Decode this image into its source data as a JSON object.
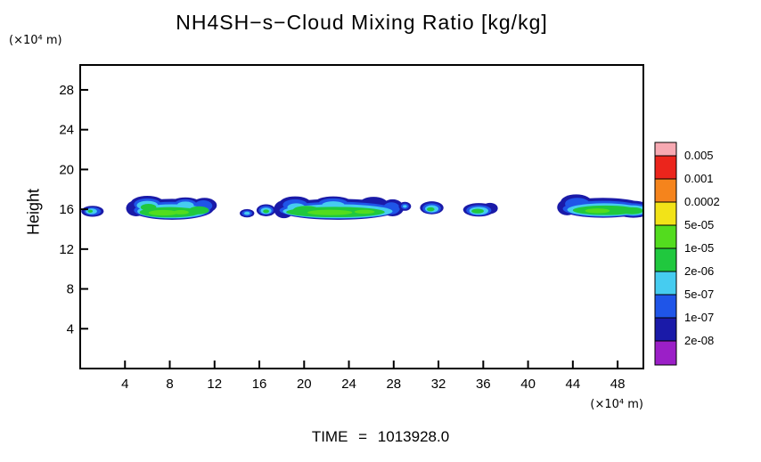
{
  "chart": {
    "title": "NH4SH−s−Cloud Mixing Ratio [kg/kg]",
    "y_label": "Height",
    "y_unit": "(×10⁴ m)",
    "x_unit": "(×10⁴ m)",
    "time_label": "TIME = 1013928.0"
  },
  "chart_data": {
    "type": "heatmap",
    "title": "NH4SH−s−Cloud Mixing Ratio [kg/kg]",
    "xlabel": "(×10⁴ m)",
    "ylabel": "Height",
    "ylabel_unit": "(×10⁴ m)",
    "xlim": [
      0,
      50.3
    ],
    "ylim": [
      0,
      30.5
    ],
    "xticks": [
      4,
      8,
      12,
      16,
      20,
      24,
      28,
      32,
      36,
      40,
      44,
      48
    ],
    "yticks": [
      4,
      8,
      12,
      16,
      20,
      24,
      28
    ],
    "grid": false,
    "legend_position": "right-colorbar",
    "colorbar": {
      "labels": [
        "0.005",
        "0.001",
        "0.0002",
        "5e-05",
        "1e-05",
        "2e-06",
        "5e-07",
        "1e-07",
        "2e-08"
      ],
      "colors": [
        "#f7a9b2",
        "#eb251c",
        "#f5841c",
        "#f2e318",
        "#53dc1e",
        "#20c83e",
        "#46ccf0",
        "#1f55e8",
        "#1a1aa8",
        "#9b1fc7"
      ]
    },
    "cloud_bands": [
      {
        "x_range": [
          0.2,
          2.0
        ],
        "height_center": 15.8,
        "max_level": "2e-06"
      },
      {
        "x_range": [
          4.6,
          11.9
        ],
        "height_center": 16.0,
        "max_level": "5e-05"
      },
      {
        "x_range": [
          14.3,
          15.5
        ],
        "height_center": 15.6,
        "max_level": "5e-07"
      },
      {
        "x_range": [
          15.8,
          17.4
        ],
        "height_center": 15.9,
        "max_level": "1e-05"
      },
      {
        "x_range": [
          17.5,
          28.4
        ],
        "height_center": 16.0,
        "max_level": "5e-05"
      },
      {
        "x_range": [
          28.5,
          29.5
        ],
        "height_center": 16.3,
        "max_level": "5e-07"
      },
      {
        "x_range": [
          30.4,
          32.4
        ],
        "height_center": 16.1,
        "max_level": "1e-05"
      },
      {
        "x_range": [
          34.2,
          36.9
        ],
        "height_center": 15.9,
        "max_level": "1e-05"
      },
      {
        "x_range": [
          42.8,
          50.3
        ],
        "height_center": 16.0,
        "max_level": "5e-05"
      }
    ],
    "clouds": [
      {
        "layers": [
          {
            "color": "#1a1aa8",
            "ellipses": [
              [
                1.1,
                15.8,
                1.0,
                0.55
              ]
            ]
          },
          {
            "color": "#1f55e8",
            "ellipses": [
              [
                1.1,
                15.8,
                0.75,
                0.4
              ]
            ]
          },
          {
            "color": "#46ccf0",
            "ellipses": [
              [
                1.0,
                15.8,
                0.5,
                0.28
              ]
            ]
          },
          {
            "color": "#20c83e",
            "ellipses": [
              [
                0.9,
                15.8,
                0.22,
                0.15
              ]
            ]
          }
        ]
      },
      {
        "layers": [
          {
            "color": "#1a1aa8",
            "ellipses": [
              [
                8.2,
                16.0,
                3.7,
                1.05
              ],
              [
                6.0,
                16.6,
                1.5,
                0.75
              ],
              [
                9.4,
                16.6,
                1.3,
                0.6
              ],
              [
                11.1,
                16.4,
                1.1,
                0.75
              ],
              [
                5.0,
                16.1,
                0.9,
                0.8
              ]
            ]
          },
          {
            "color": "#1f55e8",
            "ellipses": [
              [
                8.2,
                15.9,
                3.4,
                0.85
              ],
              [
                6.0,
                16.5,
                1.2,
                0.6
              ],
              [
                9.4,
                16.5,
                1.0,
                0.5
              ],
              [
                11.0,
                16.35,
                0.8,
                0.55
              ]
            ]
          },
          {
            "color": "#46ccf0",
            "ellipses": [
              [
                8.2,
                15.8,
                3.1,
                0.7
              ],
              [
                6.0,
                16.4,
                0.95,
                0.45
              ],
              [
                9.4,
                16.4,
                0.75,
                0.38
              ]
            ]
          },
          {
            "color": "#20c83e",
            "ellipses": [
              [
                8.0,
                15.7,
                2.7,
                0.52
              ],
              [
                6.1,
                16.2,
                0.7,
                0.35
              ],
              [
                10.6,
                15.9,
                0.9,
                0.4
              ]
            ]
          },
          {
            "color": "#53dc1e",
            "ellipses": [
              [
                7.4,
                15.65,
                1.3,
                0.28
              ],
              [
                9.0,
                15.7,
                0.7,
                0.22
              ]
            ]
          }
        ]
      },
      {
        "layers": [
          {
            "color": "#1a1aa8",
            "ellipses": [
              [
                14.9,
                15.6,
                0.65,
                0.42
              ]
            ]
          },
          {
            "color": "#1f55e8",
            "ellipses": [
              [
                14.9,
                15.6,
                0.45,
                0.28
              ]
            ]
          },
          {
            "color": "#46ccf0",
            "ellipses": [
              [
                14.9,
                15.6,
                0.26,
                0.16
              ]
            ]
          }
        ]
      },
      {
        "layers": [
          {
            "color": "#1a1aa8",
            "ellipses": [
              [
                16.6,
                15.9,
                0.85,
                0.6
              ]
            ]
          },
          {
            "color": "#1f55e8",
            "ellipses": [
              [
                16.6,
                15.9,
                0.65,
                0.45
              ]
            ]
          },
          {
            "color": "#46ccf0",
            "ellipses": [
              [
                16.6,
                15.85,
                0.48,
                0.32
              ]
            ]
          },
          {
            "color": "#20c83e",
            "ellipses": [
              [
                16.6,
                15.8,
                0.27,
                0.18
              ]
            ]
          }
        ]
      },
      {
        "layers": [
          {
            "color": "#1a1aa8",
            "ellipses": [
              [
                23.0,
                16.0,
                5.5,
                1.05
              ],
              [
                19.2,
                16.6,
                1.4,
                0.7
              ],
              [
                22.6,
                16.7,
                1.6,
                0.6
              ],
              [
                26.2,
                16.5,
                1.3,
                0.75
              ],
              [
                27.9,
                16.15,
                1.0,
                0.85
              ],
              [
                18.2,
                16.0,
                0.9,
                0.9
              ]
            ]
          },
          {
            "color": "#1f55e8",
            "ellipses": [
              [
                23.0,
                15.9,
                5.2,
                0.85
              ],
              [
                22.6,
                16.6,
                1.3,
                0.5
              ],
              [
                19.2,
                16.45,
                1.1,
                0.55
              ],
              [
                27.8,
                16.1,
                0.75,
                0.6
              ]
            ]
          },
          {
            "color": "#46ccf0",
            "ellipses": [
              [
                23.0,
                15.8,
                4.9,
                0.7
              ],
              [
                22.6,
                16.45,
                1.0,
                0.35
              ],
              [
                19.3,
                16.2,
                0.8,
                0.4
              ]
            ]
          },
          {
            "color": "#20c83e",
            "ellipses": [
              [
                22.8,
                15.72,
                4.4,
                0.52
              ],
              [
                20.2,
                15.9,
                1.2,
                0.45
              ]
            ]
          },
          {
            "color": "#53dc1e",
            "ellipses": [
              [
                22.3,
                15.68,
                2.0,
                0.27
              ],
              [
                25.4,
                15.75,
                0.9,
                0.2
              ]
            ]
          }
        ]
      },
      {
        "layers": [
          {
            "color": "#1a1aa8",
            "ellipses": [
              [
                29.0,
                16.3,
                0.55,
                0.45
              ]
            ]
          },
          {
            "color": "#1f55e8",
            "ellipses": [
              [
                29.0,
                16.3,
                0.35,
                0.28
              ]
            ]
          },
          {
            "color": "#46ccf0",
            "ellipses": [
              [
                29.0,
                16.3,
                0.18,
                0.14
              ]
            ]
          }
        ]
      },
      {
        "layers": [
          {
            "color": "#1a1aa8",
            "ellipses": [
              [
                31.4,
                16.15,
                1.05,
                0.65
              ]
            ]
          },
          {
            "color": "#1f55e8",
            "ellipses": [
              [
                31.4,
                16.1,
                0.82,
                0.5
              ]
            ]
          },
          {
            "color": "#46ccf0",
            "ellipses": [
              [
                31.4,
                16.05,
                0.6,
                0.36
              ]
            ]
          },
          {
            "color": "#20c83e",
            "ellipses": [
              [
                31.3,
                16.0,
                0.34,
                0.2
              ]
            ]
          }
        ]
      },
      {
        "layers": [
          {
            "color": "#1a1aa8",
            "ellipses": [
              [
                35.6,
                15.95,
                1.4,
                0.68
              ],
              [
                36.6,
                16.1,
                0.7,
                0.55
              ]
            ]
          },
          {
            "color": "#1f55e8",
            "ellipses": [
              [
                35.6,
                15.9,
                1.12,
                0.52
              ]
            ]
          },
          {
            "color": "#46ccf0",
            "ellipses": [
              [
                35.6,
                15.85,
                0.85,
                0.4
              ]
            ]
          },
          {
            "color": "#20c83e",
            "ellipses": [
              [
                35.5,
                15.82,
                0.55,
                0.24
              ]
            ]
          }
        ]
      },
      {
        "layers": [
          {
            "color": "#1a1aa8",
            "ellipses": [
              [
                46.7,
                16.15,
                3.9,
                1.0
              ],
              [
                44.3,
                16.7,
                1.4,
                0.8
              ],
              [
                49.4,
                16.0,
                1.7,
                0.85
              ],
              [
                43.5,
                16.2,
                0.9,
                0.8
              ]
            ]
          },
          {
            "color": "#1f55e8",
            "ellipses": [
              [
                46.7,
                16.05,
                3.6,
                0.8
              ],
              [
                44.4,
                16.55,
                1.1,
                0.6
              ],
              [
                49.4,
                15.95,
                1.4,
                0.65
              ]
            ]
          },
          {
            "color": "#46ccf0",
            "ellipses": [
              [
                46.8,
                15.95,
                3.3,
                0.65
              ],
              [
                49.4,
                15.9,
                1.2,
                0.5
              ]
            ]
          },
          {
            "color": "#20c83e",
            "ellipses": [
              [
                46.9,
                15.9,
                2.9,
                0.48
              ],
              [
                49.3,
                15.85,
                1.0,
                0.35
              ]
            ]
          },
          {
            "color": "#53dc1e",
            "ellipses": [
              [
                46.2,
                15.85,
                1.1,
                0.24
              ]
            ]
          }
        ]
      }
    ]
  }
}
